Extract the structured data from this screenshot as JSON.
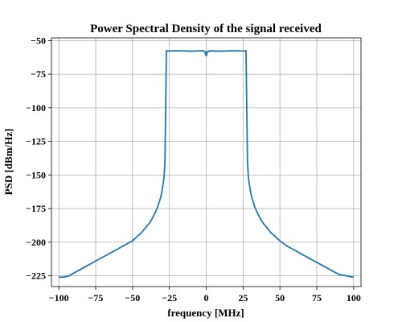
{
  "chart_data": {
    "type": "line",
    "title": "Power Spectral Density of the signal received",
    "xlabel": "frequency [MHz]",
    "ylabel": "PSD [dBm/Hz]",
    "xlim": [
      -105,
      105
    ],
    "ylim": [
      -233,
      -48
    ],
    "grid": true,
    "xticks": [
      -100,
      -75,
      -50,
      -25,
      0,
      25,
      50,
      75,
      100
    ],
    "yticks": [
      -50,
      -75,
      -100,
      -125,
      -150,
      -175,
      -200,
      -225
    ],
    "xtick_labels": [
      "−100",
      "−75",
      "−50",
      "−25",
      "0",
      "25",
      "50",
      "75",
      "100"
    ],
    "ytick_labels": [
      "−50",
      "−75",
      "−100",
      "−125",
      "−150",
      "−175",
      "−200",
      "−225"
    ],
    "series": [
      {
        "name": "PSD",
        "color": "#1f77b4",
        "x": [
          -100,
          -97,
          -93,
          -90,
          -85,
          -80,
          -75,
          -70,
          -65,
          -60,
          -55,
          -50,
          -47,
          -44,
          -41,
          -38,
          -35,
          -33,
          -31,
          -30,
          -29,
          -28.5,
          -28,
          -27.5,
          -27,
          -26.5,
          -26,
          -20,
          -10,
          -2,
          -0.5,
          -0.4,
          0,
          0.4,
          0.5,
          2,
          10,
          20,
          26,
          26.5,
          27,
          27.5,
          28,
          28.5,
          29,
          30,
          31,
          33,
          35,
          38,
          41,
          44,
          47,
          50,
          55,
          60,
          65,
          70,
          75,
          80,
          85,
          90,
          95,
          100
        ],
        "y": [
          -226,
          -226,
          -225,
          -223,
          -220,
          -217,
          -214,
          -211,
          -208,
          -205,
          -202,
          -199,
          -196,
          -193,
          -189,
          -185,
          -179,
          -174,
          -167,
          -162,
          -155,
          -150,
          -140,
          -100,
          -57.5,
          -57.7,
          -57.8,
          -57.6,
          -57.9,
          -57.6,
          -59,
          -61,
          -58,
          -61,
          -59,
          -57.7,
          -57.9,
          -57.6,
          -57.8,
          -57.7,
          -57.5,
          -100,
          -140,
          -150,
          -155,
          -162,
          -167,
          -174,
          -179,
          -185,
          -189,
          -193,
          -196,
          -199,
          -203,
          -206,
          -209,
          -212,
          -215,
          -218,
          -221,
          -224,
          -225,
          -226
        ]
      }
    ]
  }
}
